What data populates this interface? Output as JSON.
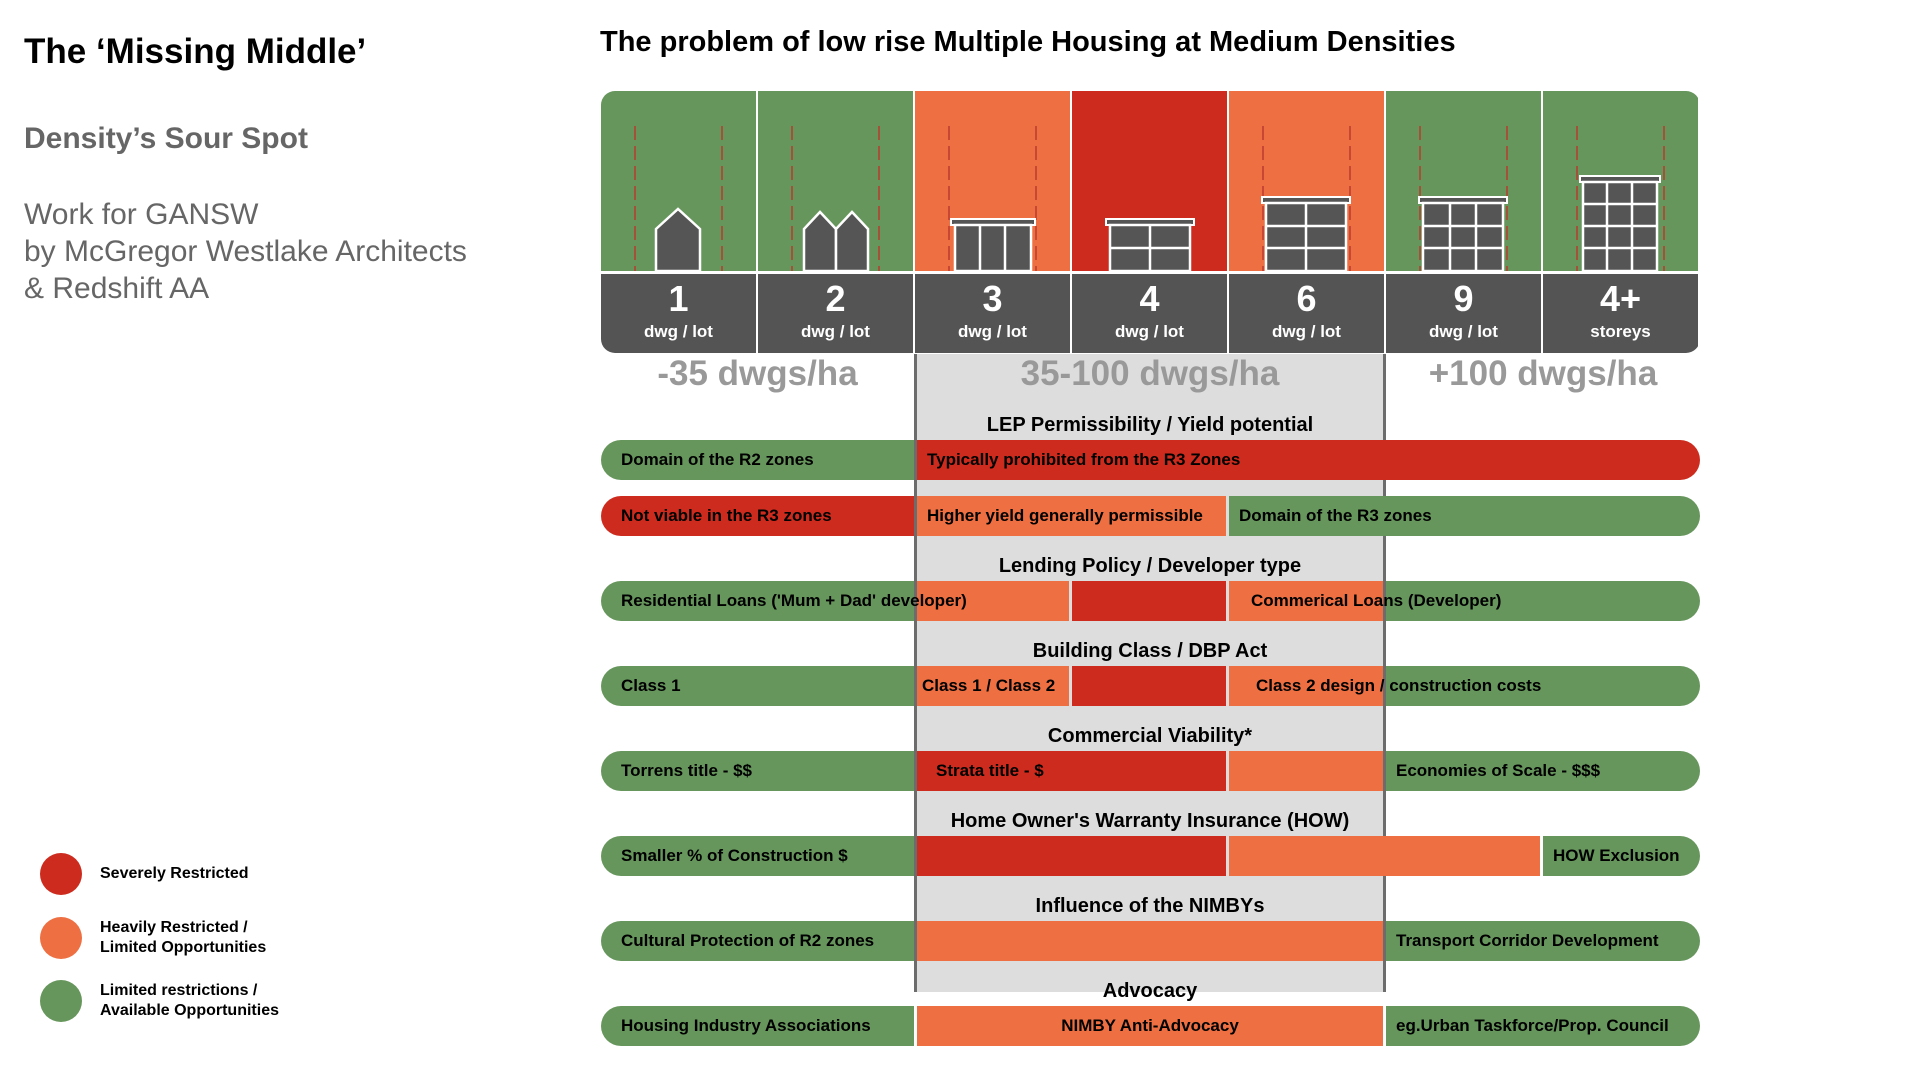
{
  "header": {
    "title": "The ‘Missing Middle’",
    "subtitle": "Density’s Sour Spot",
    "credit_line1": "Work for GANSW",
    "credit_line2": "by McGregor Westlake Architects",
    "credit_line3": "& Redshift AA"
  },
  "diagram_title": "The problem of low rise Multiple Housing at Medium Densities",
  "colors": {
    "severe": "#cc2b1d",
    "heavy": "#ee6f42",
    "limited": "#66965c",
    "dark": "#545454",
    "band": "#dddddd"
  },
  "tiles": [
    {
      "num": "1",
      "unit": "dwg / lot",
      "color": "limited"
    },
    {
      "num": "2",
      "unit": "dwg / lot",
      "color": "limited"
    },
    {
      "num": "3",
      "unit": "dwg / lot",
      "color": "heavy"
    },
    {
      "num": "4",
      "unit": "dwg / lot",
      "color": "severe"
    },
    {
      "num": "6",
      "unit": "dwg / lot",
      "color": "heavy"
    },
    {
      "num": "9",
      "unit": "dwg / lot",
      "color": "limited"
    },
    {
      "num": "4+",
      "unit": "storeys",
      "color": "limited"
    }
  ],
  "density_labels": {
    "low": "-35 dwgs/ha",
    "mid": "35-100 dwgs/ha",
    "high": "+100 dwgs/ha"
  },
  "sections": {
    "lep": "LEP Permissibility / Yield potential",
    "lending": "Lending Policy / Developer type",
    "building": "Building Class / DBP Act",
    "commercial": "Commercial Viability*",
    "how": "Home Owner's Warranty Insurance (HOW)",
    "nimby": "Influence of the NIMBYs",
    "advocacy": "Advocacy"
  },
  "rows": {
    "r2_domain": "Domain of the R2 zones",
    "r3_prohibited": "Typically prohibited from the R3 Zones",
    "r3_not_viable": "Not viable in the R3 zones",
    "higher_yield": "Higher yield generally permissible",
    "r3_domain": "Domain of the R3 zones",
    "res_loans": "Residential Loans ('Mum + Dad' developer)",
    "comm_loans": "Commerical Loans (Developer)",
    "class1": "Class 1",
    "class12": "Class 1 / Class 2",
    "class2": "Class 2 design / construction costs",
    "torrens": "Torrens title - $$",
    "strata": "Strata title - $",
    "economies": "Economies of Scale - $$$",
    "smaller_pct": "Smaller % of Construction $",
    "how_excl": "HOW Exclusion",
    "cultural": "Cultural Protection of R2 zones",
    "transport": "Transport Corridor Development",
    "hia": "Housing Industry Associations",
    "nimby_adv": "NIMBY Anti-Advocacy",
    "urban": "eg.Urban Taskforce/Prop. Council"
  },
  "legend": [
    {
      "color": "severe",
      "label1": "Severely Restricted",
      "label2": ""
    },
    {
      "color": "heavy",
      "label1": "Heavily Restricted /",
      "label2": "Limited Opportunities"
    },
    {
      "color": "limited",
      "label1": "Limited restrictions /",
      "label2": "Available Opportunities"
    }
  ]
}
